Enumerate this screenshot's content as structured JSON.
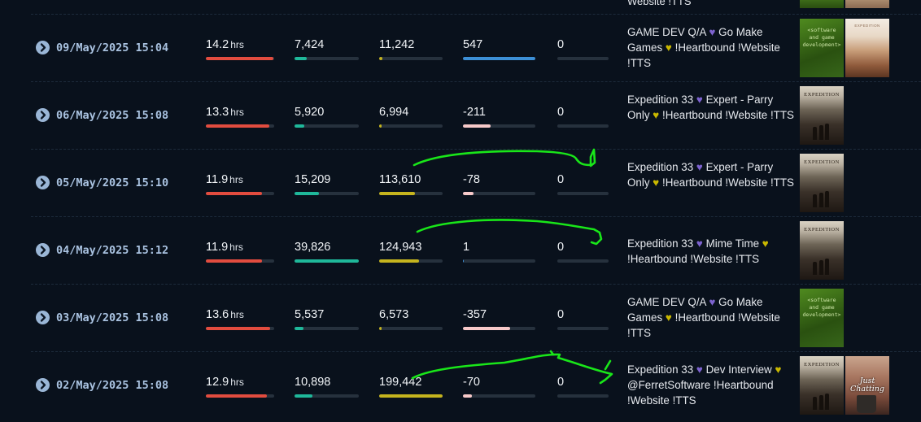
{
  "colors": {
    "hours_bar": "#e24c3f",
    "followers_bar": "#1fb89a",
    "views_bar": "#c5b41e",
    "positive_bar": "#3c8fd6",
    "negative_bar": "#f7c9c9",
    "annotation": "#19e619"
  },
  "top_fragment": {
    "title_tail": "Website !TTS"
  },
  "rows": [
    {
      "date": "09/May/2025 15:04",
      "hours": "14.2",
      "hours_unit": "hrs",
      "followers": "7,424",
      "views": "11,242",
      "change": "547",
      "last": "0",
      "title": {
        "a": "GAME DEV Q/A",
        "b": "Go Make Games",
        "c": "!Heartbound !Website !TTS"
      },
      "thumbs": [
        {
          "icon": "software-and-game-development-thumb",
          "text": "<software and game development>"
        },
        {
          "icon": "desert-game-thumb",
          "text": "EXPEDITION"
        }
      ]
    },
    {
      "date": "06/May/2025 15:08",
      "hours": "13.3",
      "hours_unit": "hrs",
      "followers": "5,920",
      "views": "6,994",
      "change": "-211",
      "last": "0",
      "title": {
        "a": "Expedition 33",
        "b": "Expert - Parry Only",
        "c": "!Heartbound !Website !TTS"
      },
      "thumbs": [
        {
          "icon": "expedition-33-thumb",
          "text": "EXPEDITION"
        }
      ]
    },
    {
      "date": "05/May/2025 15:10",
      "hours": "11.9",
      "hours_unit": "hrs",
      "followers": "15,209",
      "views": "113,610",
      "change": "-78",
      "last": "0",
      "title": {
        "a": "Expedition 33",
        "b": "Expert - Parry Only",
        "c": "!Heartbound !Website !TTS"
      },
      "thumbs": [
        {
          "icon": "expedition-33-thumb",
          "text": "EXPEDITION"
        }
      ]
    },
    {
      "date": "04/May/2025 15:12",
      "hours": "11.9",
      "hours_unit": "hrs",
      "followers": "39,826",
      "views": "124,943",
      "change": "1",
      "last": "0",
      "title": {
        "a": "Expedition 33",
        "b": "Mime Time",
        "c": "!Heartbound !Website !TTS"
      },
      "thumbs": [
        {
          "icon": "expedition-33-thumb",
          "text": "EXPEDITION"
        }
      ]
    },
    {
      "date": "03/May/2025 15:08",
      "hours": "13.6",
      "hours_unit": "hrs",
      "followers": "5,537",
      "views": "6,573",
      "change": "-357",
      "last": "0",
      "title": {
        "a": "GAME DEV Q/A",
        "b": "Go Make Games",
        "c": "!Heartbound !Website !TTS"
      },
      "thumbs": [
        {
          "icon": "software-and-game-development-thumb",
          "text": "<software and game development>"
        }
      ]
    },
    {
      "date": "02/May/2025 15:08",
      "hours": "12.9",
      "hours_unit": "hrs",
      "followers": "10,898",
      "views": "199,442",
      "change": "-70",
      "last": "0",
      "title": {
        "a": "Expedition 33",
        "b": "Dev Interview",
        "c": "@FerretSoftware !Heartbound !Website !TTS"
      },
      "thumbs": [
        {
          "icon": "expedition-33-thumb",
          "text": "EXPEDITION"
        },
        {
          "icon": "just-chatting-thumb",
          "text": "Just Chatting"
        }
      ]
    }
  ]
}
